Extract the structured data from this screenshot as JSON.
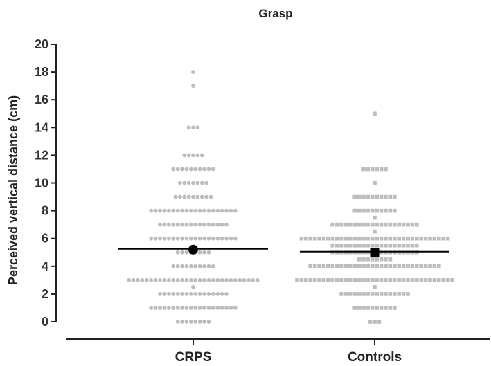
{
  "chart_data": {
    "type": "scatter",
    "title": "Grasp",
    "ylabel": "Perceived vertical distance (cm)",
    "xlabel": "",
    "ylim": [
      0,
      20
    ],
    "yticks": [
      0,
      2,
      4,
      6,
      8,
      10,
      12,
      14,
      16,
      18,
      20
    ],
    "categories": [
      "CRPS",
      "Controls"
    ],
    "grid": false,
    "legend": "none",
    "point_color": "#bdbdbd",
    "mean_color": "#000000",
    "series": [
      {
        "category": "CRPS",
        "marker": "circle",
        "mean": 5.25,
        "mean_marker_value": 5.2,
        "counts": [
          {
            "y": 0,
            "n": 8
          },
          {
            "y": 1,
            "n": 20
          },
          {
            "y": 2,
            "n": 16
          },
          {
            "y": 2.5,
            "n": 1
          },
          {
            "y": 3,
            "n": 30
          },
          {
            "y": 4,
            "n": 10
          },
          {
            "y": 5,
            "n": 8
          },
          {
            "y": 6,
            "n": 20
          },
          {
            "y": 7,
            "n": 16
          },
          {
            "y": 8,
            "n": 20
          },
          {
            "y": 9,
            "n": 9
          },
          {
            "y": 10,
            "n": 7
          },
          {
            "y": 11,
            "n": 10
          },
          {
            "y": 12,
            "n": 5
          },
          {
            "y": 14,
            "n": 3
          },
          {
            "y": 17,
            "n": 1
          },
          {
            "y": 18,
            "n": 1
          }
        ]
      },
      {
        "category": "Controls",
        "marker": "square",
        "mean": 5.05,
        "mean_marker_value": 5.0,
        "counts": [
          {
            "y": 0,
            "n": 3
          },
          {
            "y": 1,
            "n": 10
          },
          {
            "y": 2,
            "n": 16
          },
          {
            "y": 2.5,
            "n": 1
          },
          {
            "y": 3,
            "n": 36
          },
          {
            "y": 4,
            "n": 30
          },
          {
            "y": 4.5,
            "n": 8
          },
          {
            "y": 5,
            "n": 20
          },
          {
            "y": 5.5,
            "n": 20
          },
          {
            "y": 6,
            "n": 34
          },
          {
            "y": 6.5,
            "n": 1
          },
          {
            "y": 7,
            "n": 20
          },
          {
            "y": 7.5,
            "n": 1
          },
          {
            "y": 8,
            "n": 10
          },
          {
            "y": 9,
            "n": 10
          },
          {
            "y": 10,
            "n": 1
          },
          {
            "y": 11,
            "n": 6
          },
          {
            "y": 15,
            "n": 1
          }
        ]
      }
    ]
  }
}
